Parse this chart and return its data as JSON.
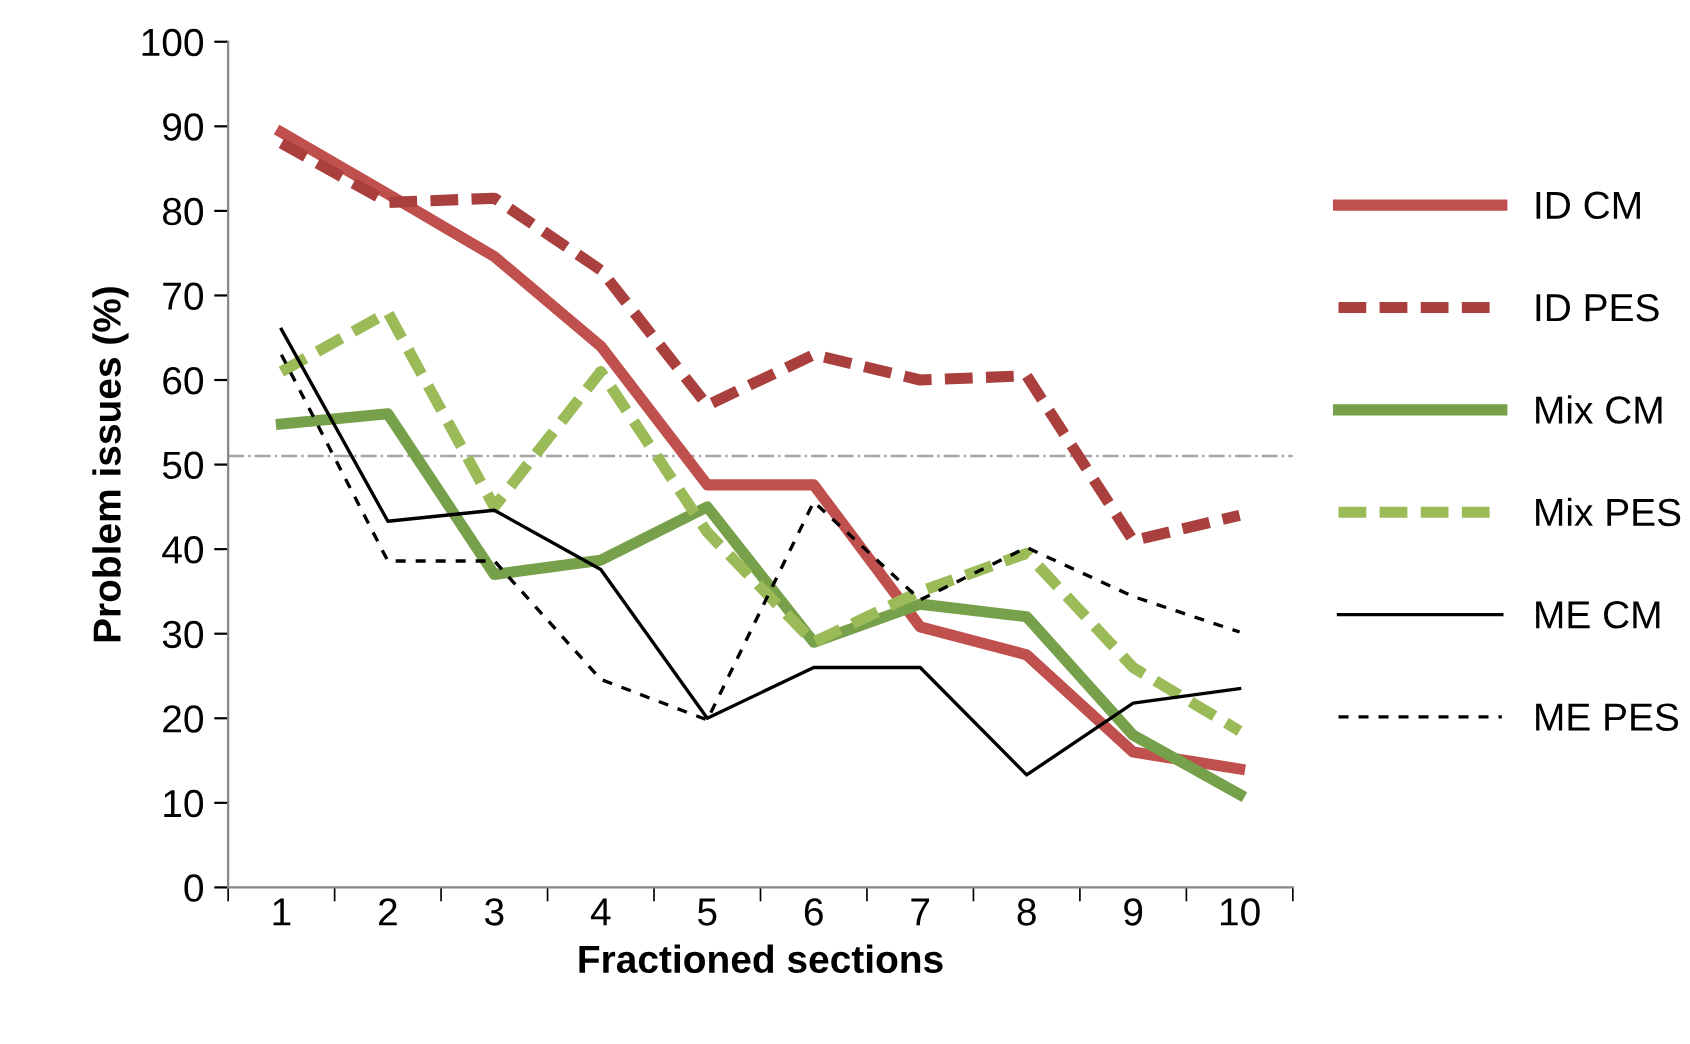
{
  "chart_data": {
    "type": "line",
    "xlabel": "Fractioned sections",
    "ylabel": "Problem issues (%)",
    "categories": [
      "1",
      "2",
      "3",
      "4",
      "5",
      "6",
      "7",
      "8",
      "9",
      "10"
    ],
    "ylim": [
      0,
      100
    ],
    "yticks": [
      0,
      10,
      20,
      30,
      40,
      50,
      60,
      70,
      80,
      90,
      100
    ],
    "grid": false,
    "legend": "right",
    "marker": "none",
    "ref_lines": [
      {
        "axis": "y",
        "value": 51,
        "color": "#a6a6a6",
        "line_style": "dashdot"
      }
    ],
    "series": [
      {
        "name": "ID CM",
        "color": "#c0504d",
        "line_style": "solid",
        "values": [
          89.3,
          82,
          74.6,
          64,
          47.6,
          47.6,
          30.8,
          27.5,
          16,
          14
        ]
      },
      {
        "name": "ID PES",
        "color": "#a9403d",
        "line_style": "dashed",
        "values": [
          88,
          81,
          81.5,
          73,
          57,
          63,
          60,
          60.5,
          41,
          44
        ]
      },
      {
        "name": "Mix CM",
        "color": "#77a04a",
        "line_style": "solid",
        "values": [
          54.8,
          56,
          37,
          38.7,
          45,
          29,
          33.5,
          32,
          18,
          11
        ]
      },
      {
        "name": "Mix PES",
        "color": "#9bbb59",
        "line_style": "dashed",
        "values": [
          61,
          68,
          45,
          61,
          42,
          29,
          35,
          39.5,
          26,
          18.5
        ]
      },
      {
        "name": "ME CM",
        "color": "#000000",
        "line_style": "solid",
        "values": [
          66,
          43.3,
          44.6,
          37.6,
          20,
          26,
          26,
          13.3,
          21.8,
          23.5
        ]
      },
      {
        "name": "ME PES",
        "color": "#000000",
        "line_style": "dashed",
        "values": [
          63,
          38.6,
          38.6,
          24.6,
          19.8,
          45.6,
          34,
          40.2,
          34.4,
          30.2
        ]
      }
    ]
  }
}
